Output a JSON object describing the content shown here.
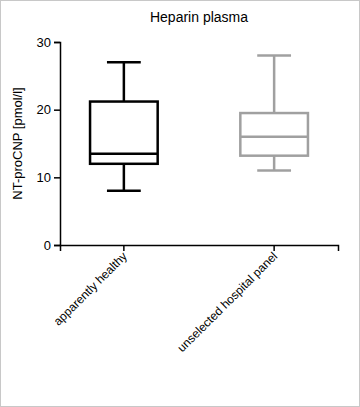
{
  "chart_data": {
    "type": "box",
    "title": "Heparin plasma",
    "y_label": "NT-proCNP [pmol/l]",
    "categories": [
      "apparently healthy",
      "unselected hospital panel"
    ],
    "boxes": [
      {
        "min": 8,
        "q1": 12,
        "median": 13.5,
        "q3": 21.2,
        "max": 27
      },
      {
        "min": 11,
        "q1": 13.2,
        "median": 16,
        "q3": 19.5,
        "max": 28
      }
    ],
    "colors": [
      "#000000",
      "#a0a0a0"
    ],
    "ylim": [
      0,
      30
    ],
    "yticks": [
      0,
      10,
      20,
      30
    ]
  }
}
